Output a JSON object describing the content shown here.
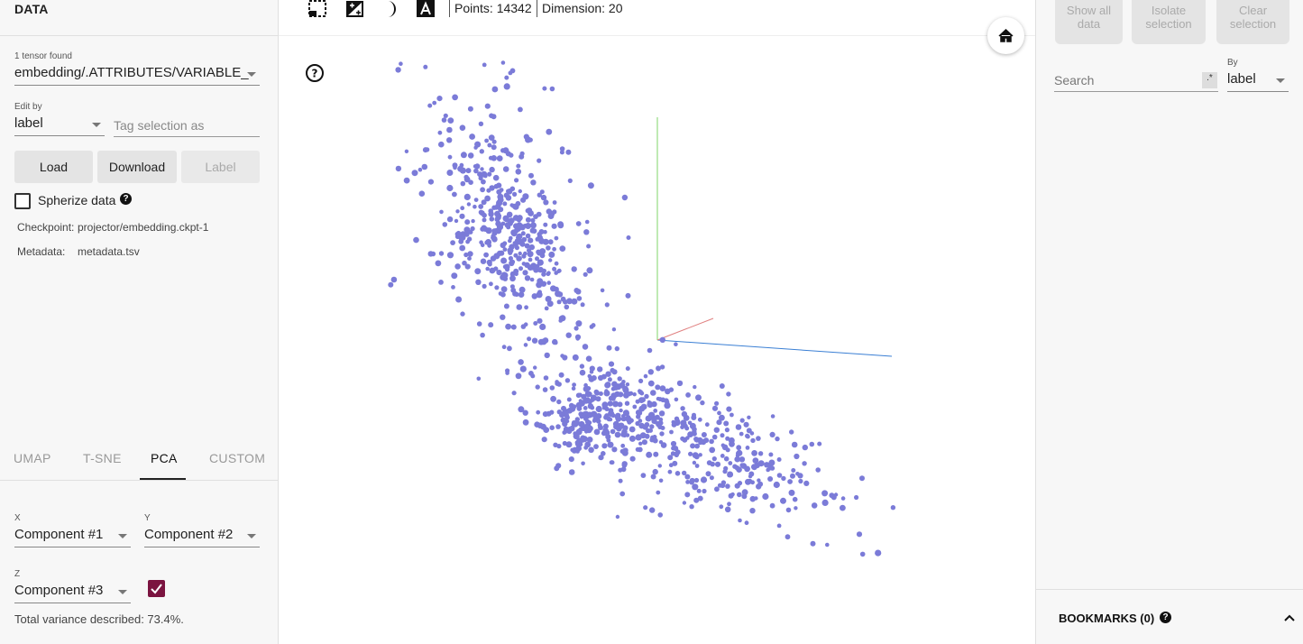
{
  "data_panel": {
    "title": "DATA",
    "tensor_count": "1 tensor found",
    "tensor_select": "embedding/.ATTRIBUTES/VARIABLE_",
    "edit_by_label": "Edit by",
    "edit_by_value": "label",
    "tag_placeholder": "Tag selection as",
    "buttons": {
      "load": "Load",
      "download": "Download",
      "label": "Label"
    },
    "spherize_label": "Spherize data",
    "checkpoint_label": "Checkpoint:",
    "checkpoint_value": "projector/embedding.ckpt-1",
    "metadata_label": "Metadata:",
    "metadata_value": "metadata.tsv"
  },
  "projection": {
    "tabs": [
      "UMAP",
      "T-SNE",
      "PCA",
      "CUSTOM"
    ],
    "active_tab": "PCA",
    "x_label": "X",
    "x_value": "Component #1",
    "y_label": "Y",
    "y_value": "Component #2",
    "z_label": "Z",
    "z_value": "Component #3",
    "z_enabled": true,
    "variance": "Total variance described: 73.4%."
  },
  "toolbar": {
    "icons": [
      "bounding-box-select-icon",
      "night-mode-icon",
      "moon-icon",
      "label-toggle-icon"
    ],
    "points": "Points: 14342",
    "dimension": "Dimension: 20"
  },
  "inspector": {
    "show_all": "Show all data",
    "isolate": "Isolate selection",
    "clear": "Clear selection",
    "search_placeholder": "Search",
    "regex_symbol": ".*",
    "by_label": "By",
    "by_value": "label",
    "bookmarks": "BOOKMARKS (0)"
  },
  "colors": {
    "point": "#7b7bd8",
    "axis_x": "#3a7fd4",
    "axis_y": "#7fd46a",
    "axis_z": "#e08080",
    "accent": "#7b1440"
  }
}
